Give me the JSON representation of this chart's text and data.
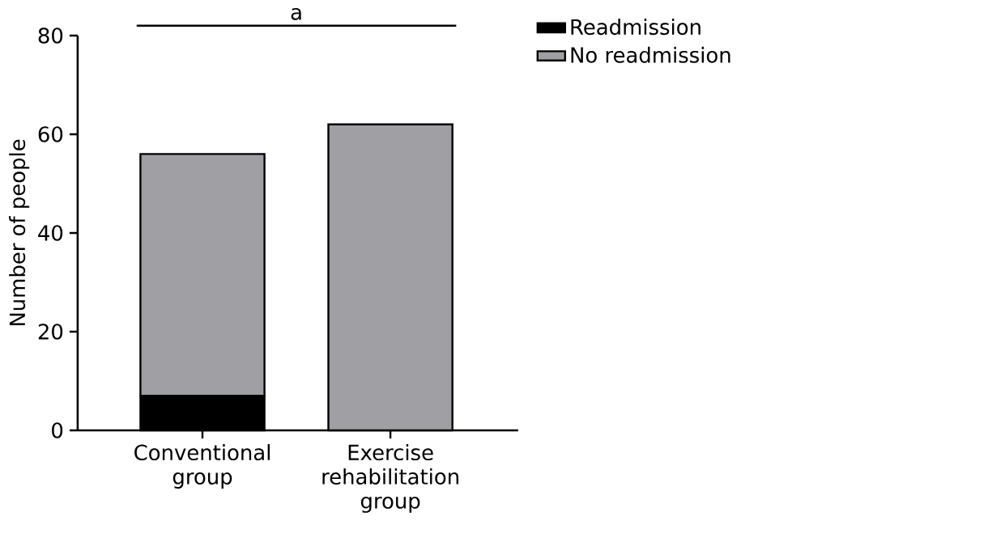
{
  "chart_data": {
    "type": "bar",
    "stacked": true,
    "categories": [
      "Conventional group",
      "Exercise rehabilitation group"
    ],
    "series": [
      {
        "name": "Readmission",
        "color": "#000000",
        "values": [
          7,
          0
        ]
      },
      {
        "name": "No readmission",
        "color": "#a0a0a4",
        "values": [
          49,
          62
        ]
      }
    ],
    "ylabel": "Number of people",
    "ylim": [
      0,
      80
    ],
    "yticks": [
      0,
      20,
      40,
      60,
      80
    ],
    "legend": "top right",
    "grid": false,
    "annotations": [
      "a"
    ]
  }
}
